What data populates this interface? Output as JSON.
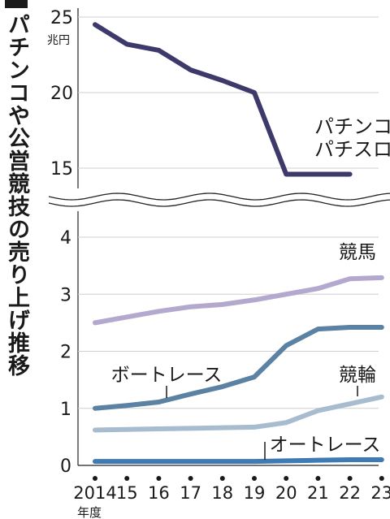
{
  "title": "パチンコや公営競技の売り上げ推移",
  "chart_data": [
    {
      "type": "line",
      "unit": "兆円",
      "ylim": [
        14.5,
        25
      ],
      "yticks": [
        15,
        20,
        25
      ],
      "x": [
        2014,
        2015,
        2016,
        2017,
        2018,
        2019,
        2020,
        2021,
        2022
      ],
      "series": [
        {
          "name": "パチンコ パチスロ",
          "label_lines": [
            "パチンコ",
            "パチスロ"
          ],
          "color": "#3d3a6b",
          "values": [
            24.5,
            23.2,
            22.8,
            21.5,
            20.8,
            20.0,
            14.6,
            14.6,
            14.6
          ]
        }
      ]
    },
    {
      "type": "line",
      "ylim": [
        0,
        4
      ],
      "yticks": [
        0,
        1,
        2,
        3,
        4
      ],
      "x": [
        2014,
        2015,
        2016,
        2017,
        2018,
        2019,
        2020,
        2021,
        2022,
        2023
      ],
      "xtick_labels": [
        "2014",
        "15",
        "16",
        "17",
        "18",
        "19",
        "20",
        "21",
        "22",
        "23"
      ],
      "xlabel": "年度",
      "grid": true,
      "series": [
        {
          "name": "競馬",
          "color": "#b3a9cf",
          "values": [
            2.5,
            2.6,
            2.7,
            2.78,
            2.82,
            2.9,
            3.0,
            3.1,
            3.27,
            3.29
          ]
        },
        {
          "name": "ボートレース",
          "color": "#5b82a3",
          "values": [
            1.0,
            1.05,
            1.11,
            1.25,
            1.38,
            1.55,
            2.1,
            2.39,
            2.42,
            2.42
          ]
        },
        {
          "name": "競輪",
          "color": "#a7bccf",
          "values": [
            0.62,
            0.63,
            0.64,
            0.65,
            0.66,
            0.67,
            0.75,
            0.96,
            1.08,
            1.2
          ]
        },
        {
          "name": "オートレース",
          "color": "#3f7ab5",
          "values": [
            0.07,
            0.07,
            0.07,
            0.07,
            0.07,
            0.07,
            0.08,
            0.09,
            0.1,
            0.1
          ]
        }
      ]
    }
  ]
}
